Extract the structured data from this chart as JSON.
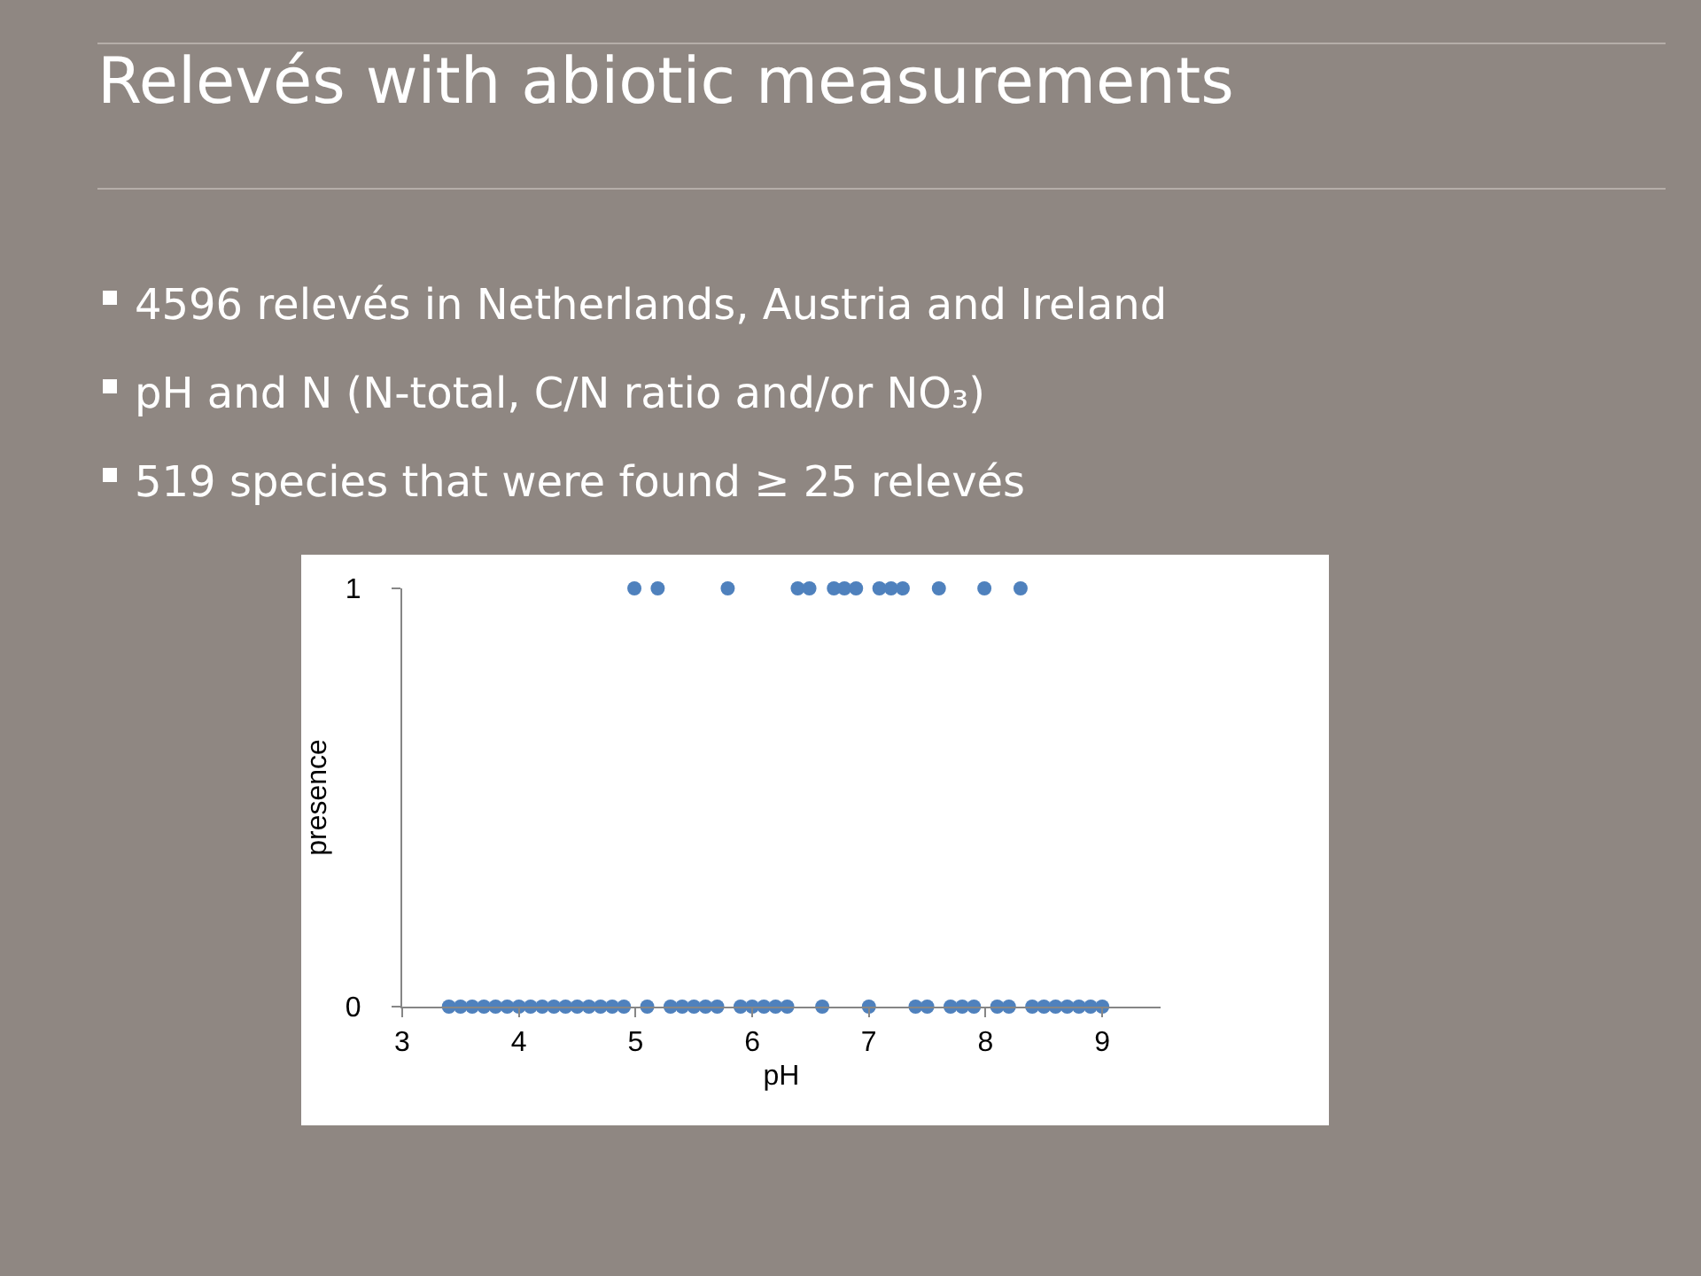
{
  "chart_data": {
    "type": "scatter",
    "title": "Relevés with abiotic measurements",
    "annotations": [
      "4596 relevés in Netherlands, Austria and Ireland",
      "pH and N (N-total, C/N ratio and/or NO₃)",
      "519 species that were found ≥ 25 relevés"
    ],
    "xlabel": "pH",
    "ylabel": "presence",
    "x": [
      4.99,
      5.19,
      5.79,
      6.39,
      6.49,
      6.7,
      6.79,
      6.89,
      7.09,
      7.19,
      7.29,
      7.6,
      7.99,
      8.3,
      3.4,
      3.5,
      3.6,
      3.7,
      3.8,
      3.9,
      4.0,
      4.1,
      4.2,
      4.3,
      4.4,
      4.5,
      4.6,
      4.7,
      4.8,
      4.9,
      5.1,
      5.3,
      5.4,
      5.5,
      5.6,
      5.7,
      5.9,
      6.0,
      6.1,
      6.2,
      6.3,
      6.6,
      7.0,
      7.4,
      7.5,
      7.7,
      7.8,
      7.9,
      8.1,
      8.2,
      8.4,
      8.5,
      8.6,
      8.7,
      8.8,
      8.9,
      9.0
    ],
    "series": [
      {
        "color": "#4f81bd",
        "values": [
          1,
          1,
          1,
          1,
          1,
          1,
          1,
          1,
          1,
          1,
          1,
          1,
          1,
          1,
          0,
          0,
          0,
          0,
          0,
          0,
          0,
          0,
          0,
          0,
          0,
          0,
          0,
          0,
          0,
          0,
          0,
          0,
          0,
          0,
          0,
          0,
          0,
          0,
          0,
          0,
          0,
          0,
          0,
          0,
          0,
          0,
          0,
          0,
          0,
          0,
          0,
          0,
          0,
          0,
          0,
          0,
          0
        ]
      }
    ],
    "xlim": [
      3,
      9.5
    ],
    "xticks": [
      3,
      4,
      5,
      6,
      7,
      8,
      9
    ],
    "ylim": [
      0,
      1
    ],
    "yticks": [
      0,
      1
    ],
    "grid": false,
    "marker": "circle"
  }
}
